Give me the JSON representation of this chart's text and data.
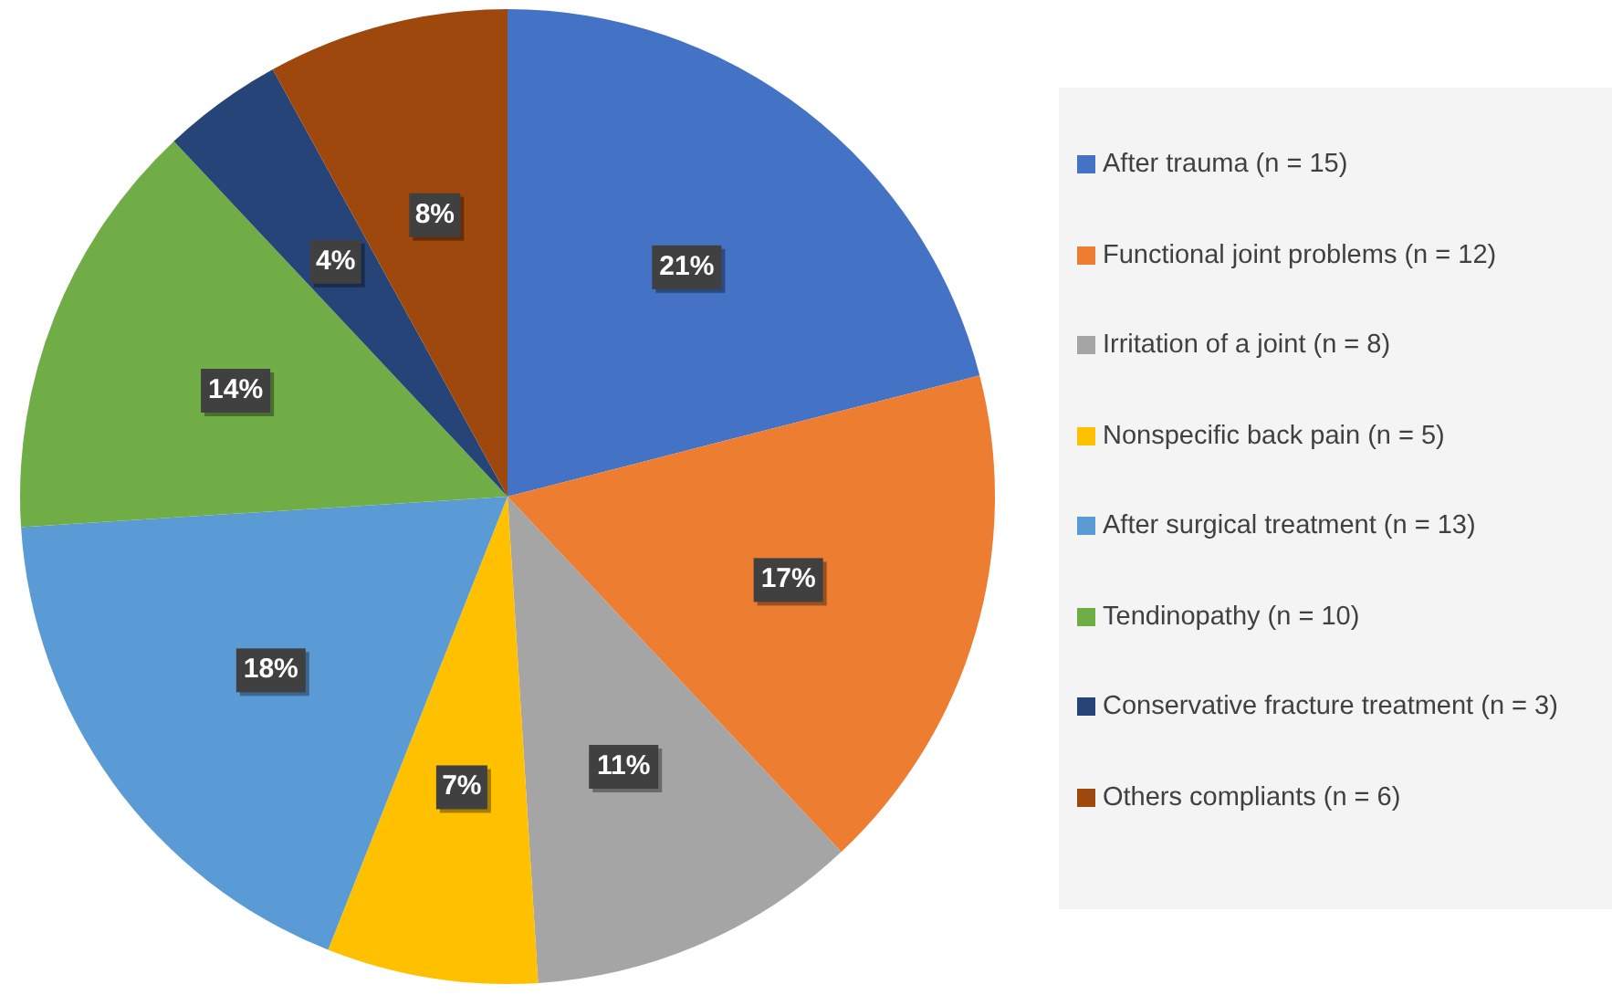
{
  "chart_data": {
    "type": "pie",
    "categories": [
      "After trauma (n = 15)",
      "Functional joint problems (n = 12)",
      "Irritation of a joint (n = 8)",
      "Nonspecific back pain (n = 5)",
      "After surgical treatment (n = 13)",
      "Tendinopathy (n = 10)",
      "Conservative fracture treatment (n = 3)",
      "Others compliants (n = 6)"
    ],
    "values": [
      21,
      17,
      11,
      7,
      18,
      14,
      4,
      8
    ],
    "value_labels": [
      "21%",
      "17%",
      "11%",
      "7%",
      "18%",
      "14%",
      "4%",
      "8%"
    ],
    "colors": [
      "#4472c4",
      "#ed7d31",
      "#a5a5a5",
      "#ffc000",
      "#5b9bd5",
      "#70ad47",
      "#264478",
      "#9e480e"
    ],
    "legend": "right"
  }
}
